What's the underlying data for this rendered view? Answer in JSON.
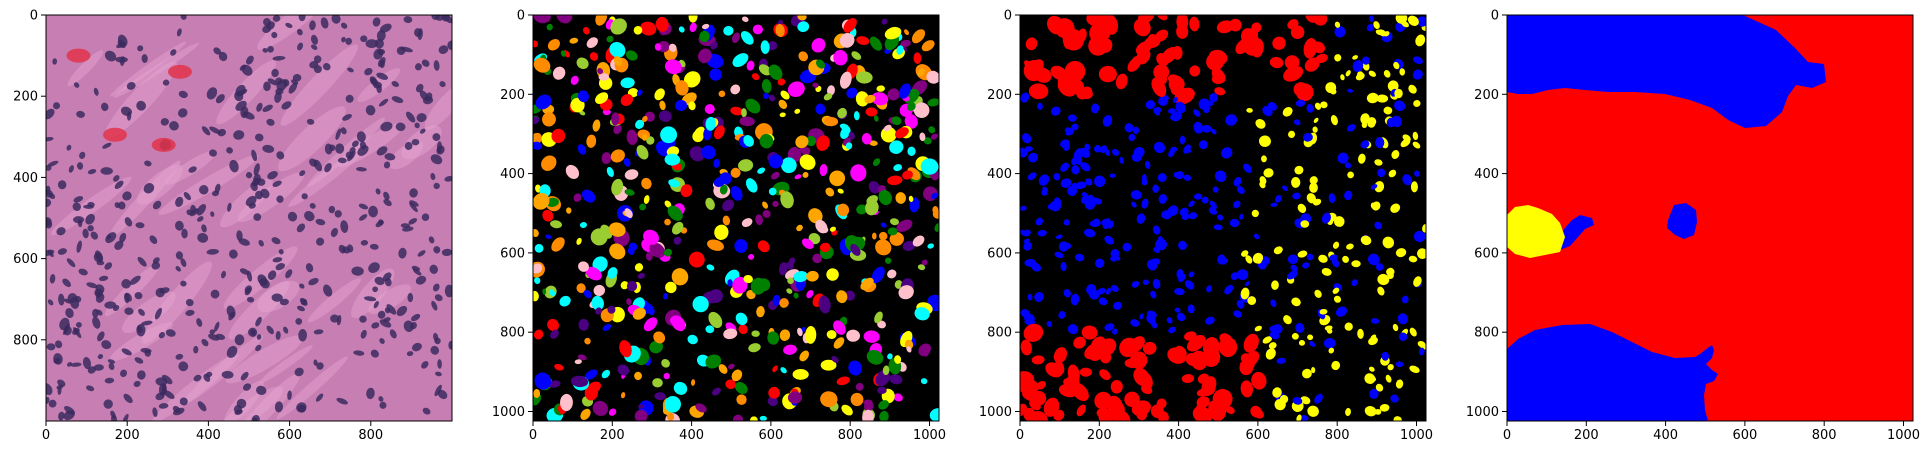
{
  "figure": {
    "colors": {
      "background": "#ffffff",
      "axes_frame": "#000000",
      "tick_label": "#000000",
      "mask_background": "#000000",
      "class_red": "#ff0000",
      "class_blue": "#0000ff",
      "class_yellow": "#ffff00",
      "instance_palette": [
        "#ffff00",
        "#008000",
        "#ffa500",
        "#ff00ff",
        "#00ffff",
        "#ffc0cb",
        "#9acd32",
        "#4b0082",
        "#0000ff",
        "#ff0000",
        "#800080",
        "#ff8c00"
      ],
      "he_background": "#c77fb3",
      "he_nuclei": "#3b2a5f",
      "he_stroma": "#e6a6d2",
      "he_rbc": "#e3324a"
    },
    "panels": [
      {
        "name": "he-image",
        "kind": "histology",
        "x_ticks": [
          "0",
          "200",
          "400",
          "600",
          "800"
        ],
        "y_ticks": [
          "0",
          "200",
          "400",
          "600",
          "800"
        ],
        "x_tick_values": [
          0,
          200,
          400,
          600,
          800
        ],
        "y_tick_values": [
          0,
          200,
          400,
          600,
          800
        ],
        "x_range": [
          0,
          1000
        ],
        "y_range": [
          0,
          1000
        ]
      },
      {
        "name": "instance-mask",
        "kind": "instance_segmentation",
        "x_ticks": [
          "0",
          "200",
          "400",
          "600",
          "800",
          "1000"
        ],
        "y_ticks": [
          "0",
          "200",
          "400",
          "600",
          "800",
          "1000"
        ],
        "x_tick_values": [
          0,
          200,
          400,
          600,
          800,
          1000
        ],
        "y_tick_values": [
          0,
          200,
          400,
          600,
          800,
          1000
        ],
        "x_range": [
          0,
          1024
        ],
        "y_range": [
          0,
          1024
        ]
      },
      {
        "name": "class-mask",
        "kind": "semantic_segmentation",
        "x_ticks": [
          "0",
          "200",
          "400",
          "600",
          "800",
          "1000"
        ],
        "y_ticks": [
          "0",
          "200",
          "400",
          "600",
          "800",
          "1000"
        ],
        "x_tick_values": [
          0,
          200,
          400,
          600,
          800,
          1000
        ],
        "y_tick_values": [
          0,
          200,
          400,
          600,
          800,
          1000
        ],
        "x_range": [
          0,
          1024
        ],
        "y_range": [
          0,
          1024
        ]
      },
      {
        "name": "region-mask",
        "kind": "region_segmentation",
        "x_ticks": [
          "0",
          "200",
          "400",
          "600",
          "800",
          "1000"
        ],
        "y_ticks": [
          "0",
          "200",
          "400",
          "600",
          "800",
          "1000"
        ],
        "x_tick_values": [
          0,
          200,
          400,
          600,
          800,
          1000
        ],
        "y_tick_values": [
          0,
          200,
          400,
          600,
          800,
          1000
        ],
        "x_range": [
          0,
          1024
        ],
        "y_range": [
          0,
          1024
        ]
      }
    ]
  }
}
